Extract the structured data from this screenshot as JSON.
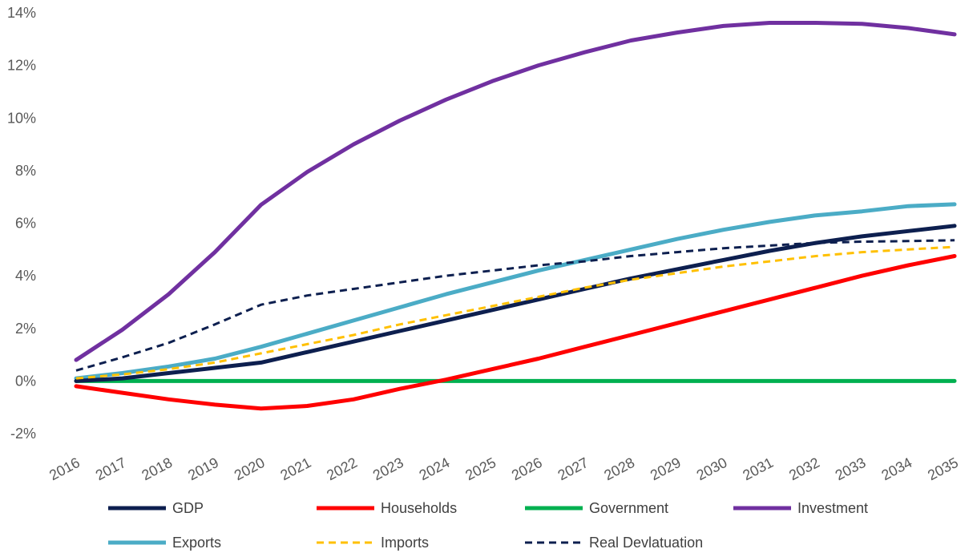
{
  "chart_data": {
    "type": "line",
    "title": "",
    "xlabel": "",
    "ylabel": "",
    "ylim": [
      -2,
      14
    ],
    "y_ticks": [
      -2,
      0,
      2,
      4,
      6,
      8,
      10,
      12,
      14
    ],
    "y_tick_labels": [
      "-2%",
      "0%",
      "2%",
      "4%",
      "6%",
      "8%",
      "10%",
      "12%",
      "14%"
    ],
    "x": [
      "2016",
      "2017",
      "2018",
      "2019",
      "2020",
      "2021",
      "2022",
      "2023",
      "2024",
      "2025",
      "2026",
      "2027",
      "2028",
      "2029",
      "2030",
      "2031",
      "2032",
      "2033",
      "2034",
      "2035"
    ],
    "grid": false,
    "legend_position": "bottom",
    "series": [
      {
        "name": "GDP",
        "color": "#0d1f4f",
        "style": "solid",
        "values": [
          0.0,
          0.1,
          0.3,
          0.5,
          0.7,
          1.1,
          1.5,
          1.9,
          2.3,
          2.7,
          3.1,
          3.5,
          3.9,
          4.25,
          4.6,
          4.95,
          5.25,
          5.5,
          5.7,
          5.9
        ]
      },
      {
        "name": "Households",
        "color": "#ff0000",
        "style": "solid",
        "values": [
          -0.2,
          -0.45,
          -0.7,
          -0.9,
          -1.05,
          -0.95,
          -0.7,
          -0.3,
          0.05,
          0.45,
          0.85,
          1.3,
          1.75,
          2.2,
          2.65,
          3.1,
          3.55,
          4.0,
          4.4,
          4.75
        ]
      },
      {
        "name": "Government",
        "color": "#00b050",
        "style": "solid",
        "values": [
          0,
          0,
          0,
          0,
          0,
          0,
          0,
          0,
          0,
          0,
          0,
          0,
          0,
          0,
          0,
          0,
          0,
          0,
          0,
          0
        ]
      },
      {
        "name": "Investment",
        "color": "#7030a0",
        "style": "solid",
        "values": [
          0.8,
          1.95,
          3.3,
          4.9,
          6.7,
          7.95,
          9.0,
          9.9,
          10.7,
          11.4,
          12.0,
          12.5,
          12.95,
          13.25,
          13.5,
          13.62,
          13.62,
          13.58,
          13.42,
          13.18
        ]
      },
      {
        "name": "Exports",
        "color": "#4bacc6",
        "style": "solid",
        "values": [
          0.1,
          0.3,
          0.55,
          0.85,
          1.3,
          1.8,
          2.3,
          2.8,
          3.3,
          3.75,
          4.2,
          4.6,
          5.0,
          5.4,
          5.75,
          6.05,
          6.3,
          6.45,
          6.65,
          6.72
        ]
      },
      {
        "name": "Imports",
        "color": "#ffc000",
        "style": "dashed",
        "values": [
          0.1,
          0.25,
          0.45,
          0.7,
          1.05,
          1.4,
          1.75,
          2.15,
          2.5,
          2.85,
          3.2,
          3.55,
          3.85,
          4.1,
          4.35,
          4.55,
          4.75,
          4.9,
          5.0,
          5.1
        ]
      },
      {
        "name": "Real Devlatuation",
        "color": "#0d1f4f",
        "style": "dashed",
        "values": [
          0.4,
          0.9,
          1.45,
          2.15,
          2.9,
          3.25,
          3.5,
          3.75,
          4.0,
          4.2,
          4.4,
          4.55,
          4.75,
          4.9,
          5.05,
          5.15,
          5.25,
          5.3,
          5.32,
          5.35
        ]
      }
    ]
  }
}
